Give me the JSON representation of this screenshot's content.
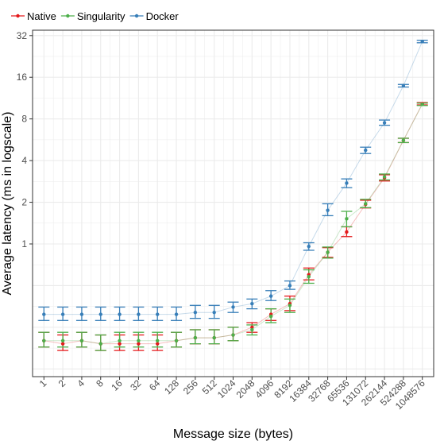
{
  "chart_data": {
    "type": "line",
    "xlabel": "Message size (bytes)",
    "ylabel": "Average latency (ms in logscale)",
    "y_scale": "log2",
    "ylim": [
      0.11,
      35
    ],
    "grid": true,
    "legend_position": "top-left",
    "y_ticks": [
      1,
      2,
      4,
      8,
      16,
      32
    ],
    "y_tick_labels": [
      "1",
      "2",
      "4",
      "8",
      "16",
      "32"
    ],
    "categories": [
      "1",
      "2",
      "4",
      "8",
      "16",
      "32",
      "64",
      "128",
      "256",
      "512",
      "1024",
      "2048",
      "4096",
      "8192",
      "16384",
      "32768",
      "65536",
      "131072",
      "262144",
      "524288",
      "1048576"
    ],
    "series": [
      {
        "name": "Native",
        "color": "#e41a1c",
        "values": [
          0.2,
          0.19,
          0.2,
          0.19,
          0.19,
          0.19,
          0.19,
          0.2,
          0.21,
          0.21,
          0.22,
          0.25,
          0.31,
          0.37,
          0.6,
          0.87,
          1.22,
          1.93,
          3.0,
          5.6,
          10.3
        ],
        "err_low": [
          0.18,
          0.17,
          0.18,
          0.17,
          0.17,
          0.17,
          0.17,
          0.18,
          0.19,
          0.19,
          0.2,
          0.23,
          0.28,
          0.33,
          0.55,
          0.8,
          1.13,
          1.82,
          2.85,
          5.4,
          10.1
        ],
        "err_high": [
          0.23,
          0.22,
          0.23,
          0.22,
          0.22,
          0.22,
          0.22,
          0.23,
          0.24,
          0.24,
          0.25,
          0.27,
          0.34,
          0.42,
          0.67,
          0.94,
          1.33,
          2.07,
          3.16,
          5.8,
          10.5
        ]
      },
      {
        "name": "Singularity",
        "color": "#4daf4a",
        "values": [
          0.2,
          0.2,
          0.2,
          0.19,
          0.2,
          0.2,
          0.2,
          0.2,
          0.21,
          0.21,
          0.22,
          0.24,
          0.3,
          0.36,
          0.58,
          0.87,
          1.52,
          1.95,
          3.05,
          5.6,
          10.2
        ],
        "err_low": [
          0.18,
          0.18,
          0.18,
          0.17,
          0.18,
          0.18,
          0.18,
          0.18,
          0.19,
          0.19,
          0.2,
          0.22,
          0.27,
          0.32,
          0.52,
          0.79,
          1.33,
          1.83,
          2.9,
          5.4,
          10.0
        ],
        "err_high": [
          0.23,
          0.23,
          0.23,
          0.22,
          0.23,
          0.23,
          0.23,
          0.23,
          0.24,
          0.24,
          0.25,
          0.26,
          0.34,
          0.4,
          0.65,
          0.95,
          1.72,
          2.1,
          3.2,
          5.8,
          10.4
        ]
      },
      {
        "name": "Docker",
        "color": "#377eb8",
        "values": [
          0.31,
          0.31,
          0.31,
          0.31,
          0.31,
          0.31,
          0.31,
          0.31,
          0.32,
          0.32,
          0.35,
          0.37,
          0.42,
          0.5,
          0.96,
          1.75,
          2.75,
          4.75,
          7.5,
          13.9,
          29.0
        ],
        "err_low": [
          0.28,
          0.28,
          0.28,
          0.28,
          0.28,
          0.28,
          0.28,
          0.28,
          0.29,
          0.29,
          0.32,
          0.34,
          0.39,
          0.47,
          0.9,
          1.6,
          2.55,
          4.5,
          7.2,
          13.6,
          28.4
        ],
        "err_high": [
          0.35,
          0.35,
          0.35,
          0.35,
          0.35,
          0.35,
          0.35,
          0.35,
          0.36,
          0.36,
          0.38,
          0.4,
          0.46,
          0.54,
          1.02,
          1.95,
          2.95,
          5.0,
          7.85,
          14.2,
          29.6
        ]
      }
    ]
  }
}
